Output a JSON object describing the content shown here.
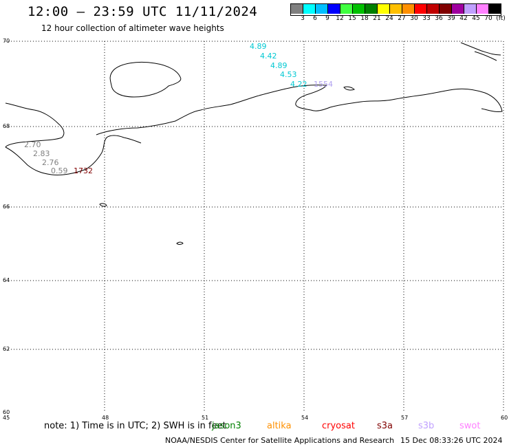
{
  "header": {
    "title": "12:00 – 23:59 UTC 11/11/2024",
    "subtitle": "12 hour collection of altimeter wave heights"
  },
  "colorbar": {
    "colors": [
      "#808080",
      "#00ffff",
      "#00bfff",
      "#0000ff",
      "#40ff40",
      "#00c000",
      "#008000",
      "#ffff00",
      "#ffc000",
      "#ff9000",
      "#ff0000",
      "#c00000",
      "#800000",
      "#a000a0",
      "#c0a0ff",
      "#ff80ff",
      "#000000"
    ],
    "labels": [
      "3",
      "6",
      "9",
      "12",
      "15",
      "18",
      "21",
      "24",
      "27",
      "30",
      "33",
      "36",
      "39",
      "42",
      "45",
      "70",
      "(ft)"
    ]
  },
  "axes": {
    "lat_labels": [
      "70",
      "68",
      "66",
      "64",
      "62",
      "60"
    ],
    "lon_labels": [
      "45",
      "48",
      "51",
      "54",
      "57",
      "60"
    ]
  },
  "observations": [
    {
      "text": "4.89",
      "color": "#00c8d2"
    },
    {
      "text": "4.42",
      "color": "#00c8d2"
    },
    {
      "text": "4.89",
      "color": "#00c8d2"
    },
    {
      "text": "4.53",
      "color": "#00c8d2"
    },
    {
      "text": "4.22",
      "color": "#00c8d2"
    },
    {
      "text": "1554",
      "color": "#b0a0f0"
    },
    {
      "text": "2.70",
      "color": "#808080"
    },
    {
      "text": "2.83",
      "color": "#808080"
    },
    {
      "text": "2.76",
      "color": "#808080"
    },
    {
      "text": "0.59",
      "color": "#808080"
    },
    {
      "text": "1732",
      "color": "#800000"
    }
  ],
  "footer": {
    "note": "note: 1) Time is in UTC; 2) SWH is in feet",
    "legend": [
      {
        "name": "jason3",
        "color": "#008000"
      },
      {
        "name": "altika",
        "color": "#ff9000"
      },
      {
        "name": "cryosat",
        "color": "#ff0000"
      },
      {
        "name": "s3a",
        "color": "#800000"
      },
      {
        "name": "s3b",
        "color": "#c0a0ff"
      },
      {
        "name": "swot",
        "color": "#ff80ff"
      }
    ],
    "credit": "NOAA/NESDIS Center for Satellite Applications and Research",
    "timestamp": "15 Dec 08:33:26 UTC 2024"
  }
}
